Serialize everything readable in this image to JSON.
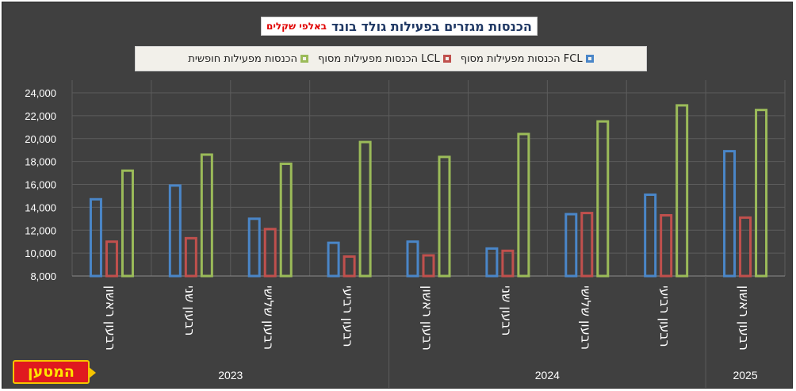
{
  "chart_data": {
    "type": "bar",
    "title": "הכנסות מגזרים בפעילות גולד בונד",
    "unit_label": "באלפי שקלים",
    "categories": [
      "רבעון ראשון",
      "רבעון שני",
      "רבעון שלישי",
      "רבעון רביעי",
      "רבעון ראשון",
      "רבעון שני",
      "רבעון שלישי",
      "רבעון רביעי",
      "רבעון ראשון"
    ],
    "year_groups": [
      {
        "label": "2023",
        "start": 0,
        "end": 3
      },
      {
        "label": "2024",
        "start": 4,
        "end": 7
      },
      {
        "label": "2025",
        "start": 8,
        "end": 8
      }
    ],
    "series": [
      {
        "name": "הכנסות מפעילות מסוף FCL",
        "color": "#4a86c8",
        "values": [
          14700,
          15900,
          13000,
          10900,
          11000,
          10400,
          13400,
          15100,
          18900
        ]
      },
      {
        "name": "הכנסות מפעילות מסוף LCL",
        "color": "#c0504d",
        "values": [
          11000,
          11300,
          12100,
          9700,
          9800,
          10200,
          13500,
          13300,
          13100
        ]
      },
      {
        "name": "הכנסות מפעילות חופשית",
        "color": "#9bbb59",
        "values": [
          17200,
          18600,
          17800,
          19700,
          18400,
          20400,
          21500,
          22900,
          22500
        ]
      }
    ],
    "ylim": [
      8000,
      24000
    ],
    "yticks": [
      "8,000",
      "10,000",
      "12,000",
      "14,000",
      "16,000",
      "18,000",
      "20,000",
      "22,000",
      "24,000"
    ],
    "grid": true,
    "legend_position": "top"
  },
  "logo": {
    "text": "המטען"
  }
}
